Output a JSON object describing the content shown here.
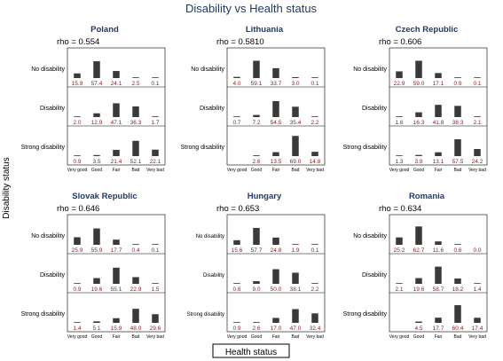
{
  "title": "Disability vs Health status",
  "xlabel": "Health status",
  "ylabel": "Disability status",
  "chart_data": {
    "type": "bar",
    "health_categories": [
      "Very good",
      "Good",
      "Fair",
      "Bad",
      "Very bad"
    ],
    "disability_rows": [
      "No disability",
      "Disability",
      "Strong disability"
    ],
    "ylim": [
      0,
      100
    ],
    "grid": false,
    "colors": {
      "bar": "#3a3a3a",
      "value_label": "#8b1a1a",
      "panel_title": "#1f3a68",
      "frame": "#000000"
    },
    "panels": [
      {
        "country": "Poland",
        "rho": "rho = 0.554",
        "rows": [
          {
            "name": "No disability",
            "values": [
              15.9,
              57.4,
              24.1,
              2.5,
              0.1
            ],
            "labels": [
              "15.9",
              "57.4",
              "24.1",
              "2.5",
              "0.1"
            ]
          },
          {
            "name": "Disability",
            "values": [
              2.0,
              12.9,
              47.1,
              36.3,
              1.7
            ],
            "labels": [
              "2.0",
              "12.9",
              "47.1",
              "36.3",
              "1.7"
            ]
          },
          {
            "name": "Strong disability",
            "values": [
              0.9,
              3.5,
              21.4,
              52.1,
              22.1
            ],
            "labels": [
              "0.9",
              "3.5",
              "21.4",
              "52.1",
              "22.1"
            ]
          }
        ]
      },
      {
        "country": "Lithuania",
        "rho": "rho = 0.5810",
        "rows": [
          {
            "name": "No disability",
            "values": [
              4.0,
              59.1,
              33.7,
              3.0,
              0.1
            ],
            "labels": [
              "4.0",
              "59.1",
              "33.7",
              "3.0",
              "0.1"
            ]
          },
          {
            "name": "Disability",
            "values": [
              0.7,
              7.2,
              54.5,
              35.4,
              2.2
            ],
            "labels": [
              "0.7",
              "7.2",
              "54.5",
              "35.4",
              "2.2"
            ]
          },
          {
            "name": "Strong disability",
            "values": [
              0,
              2.6,
              13.5,
              69.0,
              14.8
            ],
            "labels": [
              "",
              "2.6",
              "13.5",
              "69.0",
              "14.8"
            ]
          }
        ]
      },
      {
        "country": "Czech Republic",
        "rho": "rho = 0.606",
        "rows": [
          {
            "name": "No disability",
            "values": [
              22.9,
              59.0,
              17.1,
              0.9,
              0.1
            ],
            "labels": [
              "22.9",
              "59.0",
              "17.1",
              "0.9",
              "0.1"
            ]
          },
          {
            "name": "Disability",
            "values": [
              1.6,
              16.3,
              41.8,
              38.3,
              2.1
            ],
            "labels": [
              "1.6",
              "16.3",
              "41.8",
              "38.3",
              "2.1"
            ]
          },
          {
            "name": "Strong disability",
            "values": [
              1.3,
              3.9,
              13.1,
              57.5,
              24.2
            ],
            "labels": [
              "1.3",
              "3.9",
              "13.1",
              "57.5",
              "24.2"
            ]
          }
        ]
      },
      {
        "country": "Slovak Republic",
        "rho": "rho = 0.646",
        "rows": [
          {
            "name": "No disability",
            "values": [
              25.9,
              55.9,
              17.7,
              0.4,
              0.1
            ],
            "labels": [
              "25.9",
              "55.9",
              "17.7",
              "0.4",
              "0.1"
            ]
          },
          {
            "name": "Disability",
            "values": [
              0.9,
              19.6,
              55.1,
              22.9,
              1.5
            ],
            "labels": [
              "0.9",
              "19.6",
              "55.1",
              "22.9",
              "1.5"
            ]
          },
          {
            "name": "Strong disability",
            "values": [
              1.4,
              5.1,
              15.9,
              48.0,
              29.6
            ],
            "labels": [
              "1.4",
              "5.1",
              "15.9",
              "48.0",
              "29.6"
            ]
          }
        ]
      },
      {
        "country": "Hungary",
        "rho": "rho = 0.653",
        "rows": [
          {
            "name": "No disability",
            "values": [
              15.6,
              57.7,
              24.8,
              1.9,
              0.1
            ],
            "labels": [
              "15.6",
              "57.7",
              "24.8",
              "1.9",
              "0.1"
            ]
          },
          {
            "name": "Disability",
            "values": [
              0.6,
              9.0,
              50.0,
              38.1,
              2.2
            ],
            "labels": [
              "0.6",
              "9.0",
              "50.0",
              "38.1",
              "2.2"
            ]
          },
          {
            "name": "Strong disability",
            "values": [
              0.9,
              2.6,
              17.0,
              47.0,
              32.4
            ],
            "labels": [
              "0.9",
              "2.6",
              "17.0",
              "47.0",
              "32.4"
            ]
          }
        ]
      },
      {
        "country": "Romania",
        "rho": "rho = 0.634",
        "rows": [
          {
            "name": "No disability",
            "values": [
              25.2,
              62.7,
              11.6,
              0.6,
              0.0
            ],
            "labels": [
              "25.2",
              "62.7",
              "11.6",
              "0.6",
              "0.0"
            ]
          },
          {
            "name": "Disability",
            "values": [
              2.1,
              19.6,
              58.7,
              18.2,
              1.4
            ],
            "labels": [
              "2.1",
              "19.6",
              "58.7",
              "18.2",
              "1.4"
            ]
          },
          {
            "name": "Strong disability",
            "values": [
              0,
              4.5,
              17.7,
              60.4,
              17.4
            ],
            "labels": [
              "",
              "4.5",
              "17.7",
              "60.4",
              "17.4"
            ]
          }
        ]
      }
    ]
  }
}
